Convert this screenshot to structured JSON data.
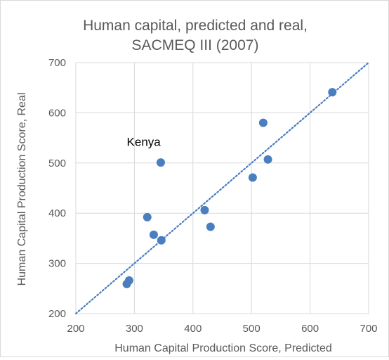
{
  "chart_data": {
    "type": "scatter",
    "title_lines": [
      "Human capital, predicted and real,",
      "SACMEQ III (2007)"
    ],
    "xlabel": "Human Capital Production Score, Predicted",
    "ylabel": "Human Capital Production Score, Real",
    "xlim": [
      200,
      700
    ],
    "ylim": [
      200,
      700
    ],
    "x_ticks": [
      "200",
      "300",
      "400",
      "500",
      "600",
      "700"
    ],
    "y_ticks": [
      "200",
      "300",
      "400",
      "500",
      "600",
      "700"
    ],
    "grid": true,
    "marker_color": "#4a7ebf",
    "trendline": {
      "style": "dotted",
      "color": "#4a7ebf",
      "from": [
        200,
        200
      ],
      "to": [
        700,
        700
      ]
    },
    "points": [
      {
        "x": 638,
        "y": 641
      },
      {
        "x": 520,
        "y": 580
      },
      {
        "x": 528,
        "y": 507
      },
      {
        "x": 502,
        "y": 471
      },
      {
        "x": 345,
        "y": 501
      },
      {
        "x": 420,
        "y": 406
      },
      {
        "x": 430,
        "y": 373
      },
      {
        "x": 322,
        "y": 392
      },
      {
        "x": 333,
        "y": 357
      },
      {
        "x": 346,
        "y": 346
      },
      {
        "x": 291,
        "y": 266
      },
      {
        "x": 287,
        "y": 259
      }
    ],
    "annotations": [
      {
        "text": "Kenya",
        "x": 287,
        "y": 534
      }
    ]
  }
}
